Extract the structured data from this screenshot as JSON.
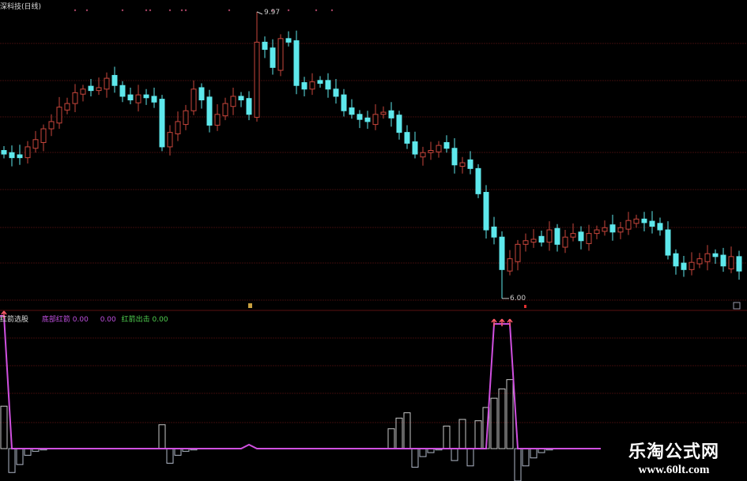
{
  "window": {
    "title": "深科技(日线)"
  },
  "indicator": {
    "name": "红箭选股",
    "fields": [
      {
        "label": "底部红箭",
        "value": "0.00",
        "color": "#c050e0"
      },
      {
        "label": "",
        "value": "0.00",
        "color": "#c050e0"
      },
      {
        "label": "红箭出击",
        "value": "0.00",
        "color": "#50d050"
      }
    ]
  },
  "watermark": {
    "name": "乐淘公式网",
    "url": "www.60lt.com"
  },
  "colors": {
    "up": "#c8463c",
    "down": "#5ee8ec",
    "grid": "#3c0c0c",
    "signal_line": "#d050e0",
    "arrow": "#ff5a6a"
  },
  "chart_data": [
    {
      "type": "candlestick",
      "title": "深科技(日线)",
      "close": [
        8.0,
        7.95,
        7.95,
        8.1,
        8.2,
        8.35,
        8.45,
        8.65,
        8.7,
        8.85,
        8.9,
        8.88,
        8.92,
        9.05,
        8.95,
        8.8,
        8.75,
        8.82,
        8.78,
        8.72,
        8.1,
        8.3,
        8.45,
        8.6,
        8.9,
        8.75,
        8.4,
        8.55,
        8.7,
        8.8,
        8.75,
        8.55,
        9.55,
        9.45,
        9.2,
        9.6,
        9.55,
        8.95,
        8.9,
        9.0,
        8.98,
        8.9,
        8.8,
        8.6,
        8.55,
        8.48,
        8.45,
        8.55,
        8.58,
        8.5,
        8.3,
        8.15,
        8.0,
        8.02,
        8.05,
        8.12,
        8.08,
        7.85,
        7.88,
        7.8,
        7.45,
        6.95,
        6.85,
        6.4,
        6.55,
        6.75,
        6.8,
        6.82,
        6.78,
        6.95,
        6.75,
        6.85,
        6.9,
        6.8,
        6.9,
        6.95,
        6.98,
        6.92,
        6.98,
        7.08,
        7.1,
        7.05,
        7.0,
        6.95,
        6.6,
        6.45,
        6.4,
        6.5,
        6.55,
        6.62,
        6.58,
        6.45,
        6.58,
        6.38
      ],
      "marked_high": {
        "index": 32,
        "value": 9.97,
        "label": "9.97"
      },
      "marked_low": {
        "index": 63,
        "value": 6.0,
        "label": "6.00"
      },
      "ylim": [
        6.0,
        9.97
      ],
      "grid": true
    },
    {
      "type": "bar+line",
      "title": "红箭选股",
      "bars": {
        "0": 32,
        "1": -18,
        "2": -12,
        "3": -5,
        "4": -2,
        "5": -1,
        "20": 18,
        "21": -11,
        "22": -5,
        "23": -2,
        "24": -1,
        "49": 15,
        "50": 23,
        "51": 27,
        "52": -14,
        "53": -6,
        "54": -3,
        "55": -1,
        "56": 17,
        "57": -9,
        "58": 22,
        "59": -13,
        "60": 21,
        "61": 31,
        "62": 38,
        "63": 45,
        "64": 52,
        "65": -40,
        "66": -13,
        "67": -7,
        "68": -3,
        "69": -1
      },
      "line": {
        "0": 100,
        "31": 3,
        "62": 94,
        "63": 94,
        "64": 94
      },
      "arrows": [
        0,
        62,
        63,
        64
      ],
      "grid": true
    }
  ]
}
